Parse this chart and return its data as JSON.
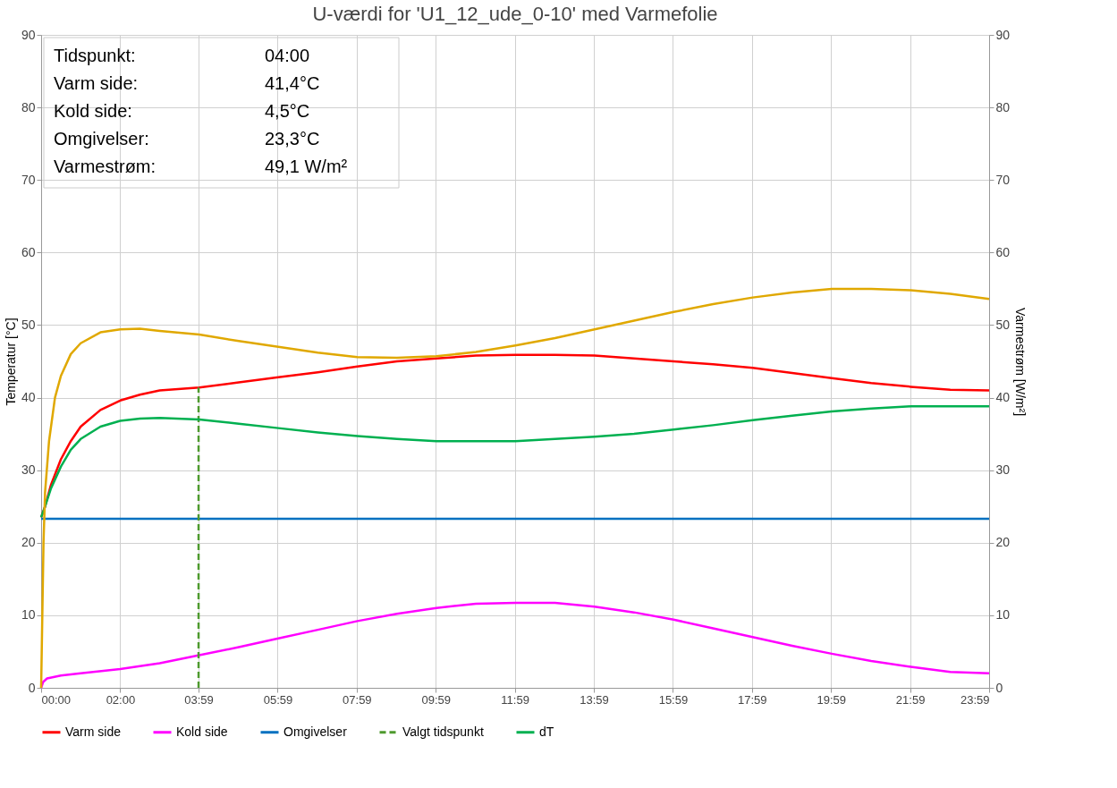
{
  "chart_data": {
    "type": "line",
    "title": "U-værdi for 'U1_12_ude_0-10' med Varmefolie",
    "xlabel": null,
    "ylabel": "Temperatur [°C]",
    "y2label": "Varmestrøm [W/m²]",
    "xlim": [
      0,
      23.983
    ],
    "xticks": [
      {
        "value": 0,
        "label": "00:00"
      },
      {
        "value": 2,
        "label": "02:00"
      },
      {
        "value": 3.983,
        "label": "03:59"
      },
      {
        "value": 5.983,
        "label": "05:59"
      },
      {
        "value": 7.983,
        "label": "07:59"
      },
      {
        "value": 9.983,
        "label": "09:59"
      },
      {
        "value": 11.983,
        "label": "11:59"
      },
      {
        "value": 13.983,
        "label": "13:59"
      },
      {
        "value": 15.983,
        "label": "15:59"
      },
      {
        "value": 17.983,
        "label": "17:59"
      },
      {
        "value": 19.983,
        "label": "19:59"
      },
      {
        "value": 21.983,
        "label": "21:59"
      },
      {
        "value": 23.983,
        "label": "23:59"
      }
    ],
    "ylim": [
      0,
      90
    ],
    "yticks": [
      0,
      10,
      20,
      30,
      40,
      50,
      60,
      70,
      80,
      90
    ],
    "y2lim": [
      0,
      90
    ],
    "y2ticks": [
      0,
      10,
      20,
      30,
      40,
      50,
      60,
      70,
      80,
      90
    ],
    "grid": true,
    "legend": "bottom",
    "annotations": [
      "Tidspunkt:",
      "04:00",
      "Varm  side:",
      "41,4°C",
      "Kold side:",
      "4,5°C",
      "Omgivelser:",
      "23,3°C",
      "Varmestrøm:",
      "49,1 W/m²"
    ],
    "series": [
      {
        "name": "Varm side",
        "color": "#ff0000",
        "x": [
          0,
          0.1,
          0.25,
          0.5,
          0.75,
          1,
          1.5,
          2,
          2.5,
          3,
          4,
          5,
          6,
          7,
          8,
          9,
          10,
          11,
          12,
          13,
          14,
          15,
          16,
          17,
          18,
          19,
          20,
          21,
          22,
          23,
          23.983
        ],
        "values": [
          23.5,
          25,
          28,
          31.5,
          34,
          36,
          38.3,
          39.6,
          40.4,
          41,
          41.4,
          42.1,
          42.8,
          43.5,
          44.3,
          45,
          45.4,
          45.8,
          45.9,
          45.9,
          45.8,
          45.4,
          45,
          44.6,
          44.1,
          43.4,
          42.7,
          42,
          41.5,
          41.1,
          41
        ]
      },
      {
        "name": "Kold side",
        "color": "#ff00ff",
        "x": [
          0,
          0.05,
          0.15,
          0.5,
          1,
          2,
          3,
          4,
          5,
          6,
          7,
          8,
          9,
          10,
          11,
          12,
          13,
          14,
          15,
          16,
          17,
          18,
          19,
          20,
          21,
          22,
          23,
          23.983
        ],
        "values": [
          0,
          0.8,
          1.3,
          1.7,
          2,
          2.6,
          3.4,
          4.5,
          5.6,
          6.8,
          8,
          9.2,
          10.2,
          11,
          11.6,
          11.7,
          11.7,
          11.2,
          10.4,
          9.4,
          8.2,
          7,
          5.8,
          4.7,
          3.7,
          2.9,
          2.2,
          2
        ]
      },
      {
        "name": "Omgivelser",
        "color": "#0070c0",
        "x": [
          0,
          23.983
        ],
        "values": [
          23.3,
          23.3
        ]
      },
      {
        "name": "Valgt tidspunkt",
        "color": "#4e9a2e",
        "line_style": "dashed",
        "x": [
          3.983,
          3.983
        ],
        "values": [
          0,
          41.4
        ]
      },
      {
        "name": "dT",
        "color": "#00b050",
        "x": [
          0,
          0.1,
          0.25,
          0.5,
          0.75,
          1,
          1.5,
          2,
          2.5,
          3,
          4,
          5,
          6,
          7,
          8,
          9,
          10,
          11,
          12,
          13,
          14,
          15,
          16,
          17,
          18,
          19,
          20,
          21,
          22,
          23,
          23.983
        ],
        "values": [
          23.5,
          25,
          27.5,
          30.5,
          32.8,
          34.3,
          36,
          36.8,
          37.1,
          37.2,
          37,
          36.4,
          35.8,
          35.2,
          34.7,
          34.3,
          34,
          34,
          34,
          34.3,
          34.6,
          35,
          35.6,
          36.2,
          36.9,
          37.5,
          38.1,
          38.5,
          38.8,
          38.8,
          38.8
        ]
      },
      {
        "color": "#e0a800",
        "axis": "y2",
        "x": [
          0,
          0.03,
          0.06,
          0.1,
          0.2,
          0.35,
          0.5,
          0.75,
          1,
          1.5,
          2,
          2.5,
          3,
          4,
          5,
          6,
          7,
          8,
          9,
          10,
          11,
          12,
          13,
          14,
          15,
          16,
          17,
          18,
          19,
          20,
          21,
          22,
          23,
          23.983
        ],
        "values": [
          0,
          10,
          20,
          27,
          34,
          40,
          43,
          46,
          47.5,
          49,
          49.4,
          49.5,
          49.2,
          48.7,
          47.8,
          47,
          46.2,
          45.6,
          45.5,
          45.7,
          46.3,
          47.2,
          48.2,
          49.4,
          50.6,
          51.8,
          52.9,
          53.8,
          54.5,
          55,
          55,
          54.8,
          54.3,
          53.6
        ]
      }
    ]
  }
}
